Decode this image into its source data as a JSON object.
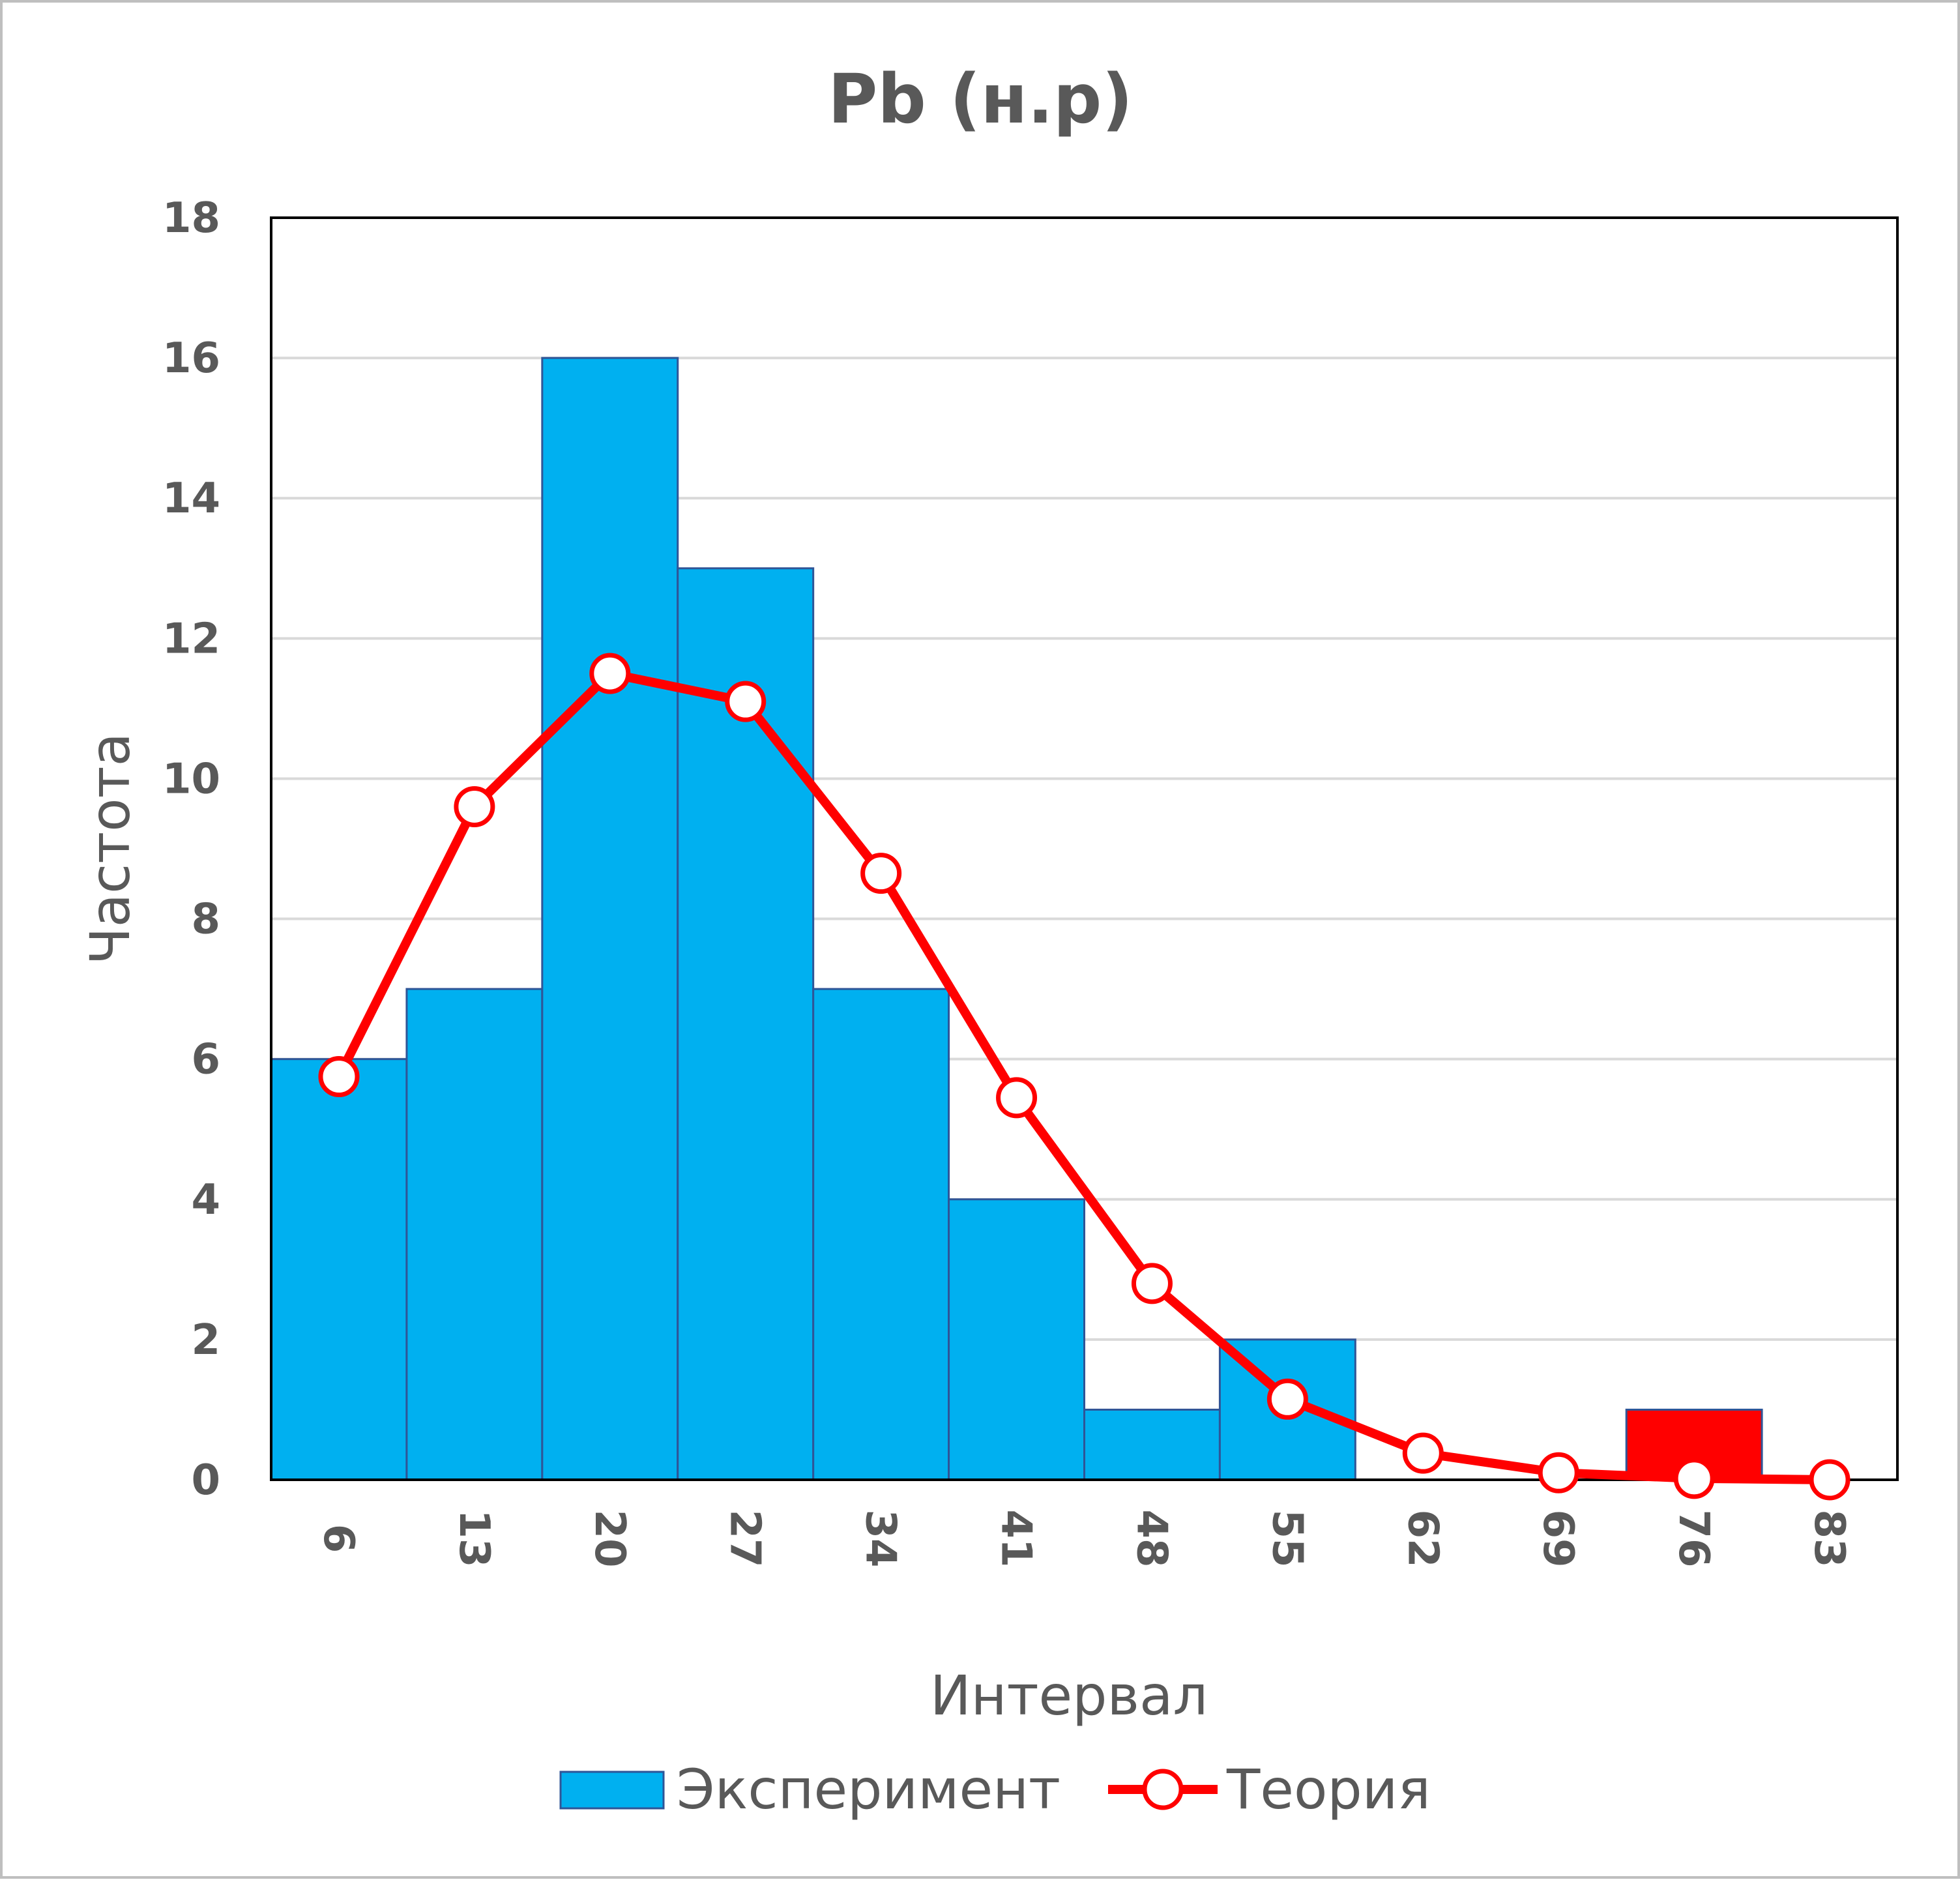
{
  "chart_data": {
    "type": "bar",
    "title": "Pb (н.р)",
    "xlabel": "Интервал",
    "ylabel": "Частота",
    "ylim": [
      0,
      18
    ],
    "yticks": [
      "0",
      "2",
      "4",
      "6",
      "8",
      "10",
      "12",
      "14",
      "16",
      "18"
    ],
    "categories": [
      "6",
      "13",
      "20",
      "27",
      "34",
      "41",
      "48",
      "55",
      "62",
      "69",
      "76",
      "83"
    ],
    "grid": true,
    "legend": "bottom",
    "series": [
      {
        "name": "Эксперимент",
        "type": "bar",
        "color": "#00B0F0",
        "values": [
          6,
          7,
          16,
          13,
          7,
          4,
          1,
          2,
          0,
          0,
          1,
          0
        ],
        "highlight": {
          "index": 10,
          "color": "#FF0000"
        }
      },
      {
        "name": "Теория",
        "type": "line",
        "color": "#FF0000",
        "marker": "circle",
        "values": [
          5.75,
          9.6,
          11.5,
          11.1,
          8.65,
          5.45,
          2.8,
          1.15,
          0.38,
          0.1,
          0.02,
          0.0
        ]
      }
    ]
  }
}
